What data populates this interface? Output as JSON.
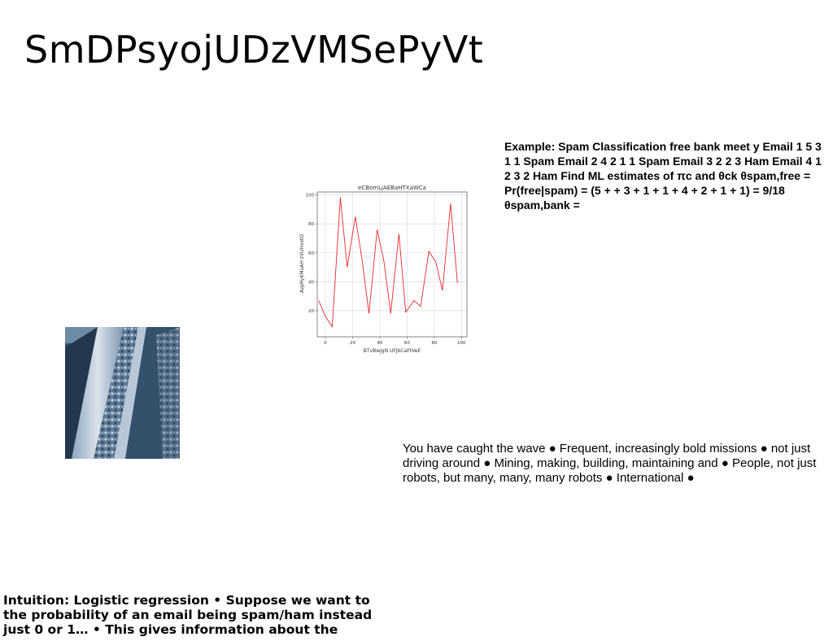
{
  "slide": {
    "title": "SmDPsyojUDzVMSePyVt",
    "spam_example": "Example: Spam Classification free bank meet y Email 1 5 3 1 1 Spam Email 2 4 2 1 1 Spam Email 3 2 2 3 Ham Email 4 1 2 3 2 Ham Find ML estimates of πc and θck θspam,free = Pr(free|spam) = (5 + + 3 + 1 + 1 + 4 + 2 + 1 + 1) = 9/18 θspam,bank =",
    "wave_text": "You have caught the wave ● Frequent, increasingly bold missions ● not just driving around ● Mining, making, building, maintaining and ● People, not just robots, but many, many, many robots ● International ●",
    "intuition_text": "Intuition: Logistic regression • Suppose we want to the probability of an email being spam/ham instead just 0 or 1… • This gives information about the"
  },
  "chart_data": {
    "type": "line",
    "title": "eCBomLjAEBaHTXaWCa",
    "xlabel": "BTvBwjgN UFJbCaFtVeE",
    "ylabel": "AzpRyKMuAH zVUHxxtO",
    "xlim": [
      -6,
      104
    ],
    "ylim": [
      2,
      102
    ],
    "xticks": [
      0,
      20,
      40,
      60,
      80,
      100
    ],
    "yticks": [
      20,
      40,
      60,
      80,
      100
    ],
    "grid": true,
    "color": "#e8262c",
    "x": [
      -5,
      0,
      5,
      11,
      16,
      22,
      27,
      32,
      38,
      43,
      48,
      54,
      59,
      65,
      70,
      76,
      81,
      86,
      92,
      97
    ],
    "y": [
      27,
      16,
      9,
      98,
      50,
      85,
      55,
      18,
      76,
      54,
      18,
      73,
      19,
      27,
      23,
      61,
      54,
      34,
      94,
      39
    ]
  },
  "photo": {
    "icon": "carved-stone-balustrade-image",
    "colors": {
      "dark": "#1f3147",
      "mid": "#5f7a95",
      "light": "#c6d4e2"
    }
  }
}
